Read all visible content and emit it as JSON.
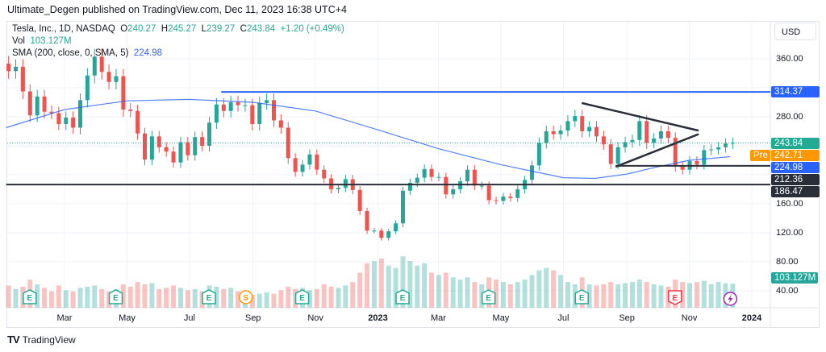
{
  "header": {
    "published": "Ultimate_Degen published on TradingView.com, Dec 11, 2023 16:38 UTC+4"
  },
  "legend": {
    "symbol": "Tesla, Inc., 1D, NASDAQ",
    "o_label": "O",
    "o": "240.27",
    "h_label": "H",
    "h": "245.27",
    "l_label": "L",
    "l": "239.27",
    "c_label": "C",
    "c": "243.84",
    "change": "+1.20 (+0.49%)",
    "vol_label": "Vol",
    "vol": "103.127M",
    "sma_label": "SMA (200, close, 0, SMA, 5)",
    "sma": "224.98"
  },
  "currency": "USD",
  "price_labels": [
    {
      "text": "314.37",
      "color": "#2962ff",
      "value": 314.37
    },
    {
      "text": "243.84",
      "color": "#22ab94",
      "value": 243.84
    },
    {
      "text": "242.71",
      "color": "#ff9800",
      "value": 242.71,
      "tag": "Pre"
    },
    {
      "text": "224.98",
      "color": "#2962ff",
      "value": 224.98
    },
    {
      "text": "212.36",
      "color": "#2a2e39",
      "value": 212.36
    },
    {
      "text": "186.47",
      "color": "#2a2e39",
      "value": 186.47
    }
  ],
  "volume_label": {
    "text": "103.127M",
    "color": "#26a69a"
  },
  "footer": {
    "brand": "TradingView"
  },
  "chart_data": {
    "type": "candlestick",
    "title": "Tesla, Inc., 1D, NASDAQ",
    "ylim": [
      20,
      400
    ],
    "y_ticks": [
      "360.00",
      "280.00",
      "160.00",
      "120.00",
      "80.00",
      "40.00"
    ],
    "y_tick_values": [
      360,
      280,
      160,
      120,
      80,
      40
    ],
    "x_ticks": [
      {
        "label": "Mar",
        "date": "2022-03-01"
      },
      {
        "label": "May",
        "date": "2022-05-01"
      },
      {
        "label": "Jul",
        "date": "2022-07-01"
      },
      {
        "label": "Sep",
        "date": "2022-09-01"
      },
      {
        "label": "Nov",
        "date": "2022-11-01"
      },
      {
        "label": "2023",
        "date": "2023-01-01"
      },
      {
        "label": "Mar",
        "date": "2023-03-01"
      },
      {
        "label": "May",
        "date": "2023-05-01"
      },
      {
        "label": "Jul",
        "date": "2023-07-01"
      },
      {
        "label": "Sep",
        "date": "2023-09-01"
      },
      {
        "label": "Nov",
        "date": "2023-11-01"
      },
      {
        "label": "2024",
        "date": "2024-01-01"
      }
    ],
    "grid": true,
    "colors": {
      "up": "#26a69a",
      "down": "#ef5350",
      "sma": "#2962ff"
    },
    "candles_weekly_close_volumeM": [
      [
        "2022-01-03",
        343,
        95
      ],
      [
        "2022-01-10",
        349,
        80
      ],
      [
        "2022-01-17",
        315,
        90
      ],
      [
        "2022-01-24",
        282,
        120
      ],
      [
        "2022-01-31",
        308,
        100
      ],
      [
        "2022-02-07",
        287,
        85
      ],
      [
        "2022-02-14",
        285,
        70
      ],
      [
        "2022-02-21",
        270,
        95
      ],
      [
        "2022-02-28",
        279,
        75
      ],
      [
        "2022-03-07",
        265,
        70
      ],
      [
        "2022-03-14",
        303,
        85
      ],
      [
        "2022-03-21",
        337,
        90
      ],
      [
        "2022-03-28",
        363,
        95
      ],
      [
        "2022-04-04",
        342,
        80
      ],
      [
        "2022-04-11",
        328,
        70
      ],
      [
        "2022-04-18",
        336,
        80
      ],
      [
        "2022-04-25",
        290,
        100
      ],
      [
        "2022-05-02",
        288,
        90
      ],
      [
        "2022-05-09",
        257,
        110
      ],
      [
        "2022-05-16",
        221,
        100
      ],
      [
        "2022-05-23",
        253,
        105
      ],
      [
        "2022-05-30",
        238,
        80
      ],
      [
        "2022-06-06",
        232,
        85
      ],
      [
        "2022-06-13",
        217,
        95
      ],
      [
        "2022-06-20",
        245,
        85
      ],
      [
        "2022-06-27",
        227,
        75
      ],
      [
        "2022-07-04",
        252,
        80
      ],
      [
        "2022-07-11",
        240,
        70
      ],
      [
        "2022-07-18",
        272,
        95
      ],
      [
        "2022-07-25",
        297,
        90
      ],
      [
        "2022-08-01",
        288,
        80
      ],
      [
        "2022-08-08",
        300,
        85
      ],
      [
        "2022-08-15",
        296,
        70
      ],
      [
        "2022-08-22",
        296,
        60
      ],
      [
        "2022-08-29",
        270,
        55
      ],
      [
        "2022-09-05",
        299,
        60
      ],
      [
        "2022-09-12",
        303,
        65
      ],
      [
        "2022-09-19",
        275,
        60
      ],
      [
        "2022-09-26",
        265,
        75
      ],
      [
        "2022-10-03",
        223,
        90
      ],
      [
        "2022-10-10",
        204,
        80
      ],
      [
        "2022-10-17",
        214,
        85
      ],
      [
        "2022-10-24",
        228,
        75
      ],
      [
        "2022-10-31",
        207,
        80
      ],
      [
        "2022-11-07",
        195,
        100
      ],
      [
        "2022-11-14",
        180,
        90
      ],
      [
        "2022-11-21",
        182,
        85
      ],
      [
        "2022-11-28",
        194,
        95
      ],
      [
        "2022-12-05",
        179,
        110
      ],
      [
        "2022-12-12",
        150,
        150
      ],
      [
        "2022-12-19",
        123,
        190
      ],
      [
        "2022-12-26",
        123,
        200
      ],
      [
        "2023-01-02",
        113,
        210
      ],
      [
        "2023-01-09",
        122,
        180
      ],
      [
        "2023-01-16",
        133,
        170
      ],
      [
        "2023-01-23",
        178,
        220
      ],
      [
        "2023-01-30",
        189,
        200
      ],
      [
        "2023-02-06",
        196,
        180
      ],
      [
        "2023-02-13",
        208,
        190
      ],
      [
        "2023-02-20",
        197,
        150
      ],
      [
        "2023-02-27",
        197,
        140
      ],
      [
        "2023-03-06",
        173,
        150
      ],
      [
        "2023-03-13",
        180,
        130
      ],
      [
        "2023-03-20",
        191,
        120
      ],
      [
        "2023-03-27",
        207,
        130
      ],
      [
        "2023-04-03",
        185,
        110
      ],
      [
        "2023-04-10",
        185,
        100
      ],
      [
        "2023-04-17",
        165,
        130
      ],
      [
        "2023-04-24",
        164,
        120
      ],
      [
        "2023-05-01",
        170,
        110
      ],
      [
        "2023-05-08",
        168,
        100
      ],
      [
        "2023-05-15",
        180,
        110
      ],
      [
        "2023-05-22",
        193,
        120
      ],
      [
        "2023-05-29",
        213,
        140
      ],
      [
        "2023-06-05",
        244,
        160
      ],
      [
        "2023-06-12",
        260,
        170
      ],
      [
        "2023-06-19",
        256,
        160
      ],
      [
        "2023-06-26",
        261,
        140
      ],
      [
        "2023-07-03",
        274,
        110
      ],
      [
        "2023-07-10",
        281,
        100
      ],
      [
        "2023-07-17",
        260,
        130
      ],
      [
        "2023-07-24",
        266,
        100
      ],
      [
        "2023-07-31",
        253,
        95
      ],
      [
        "2023-08-07",
        242,
        100
      ],
      [
        "2023-08-14",
        215,
        110
      ],
      [
        "2023-08-21",
        238,
        100
      ],
      [
        "2023-08-28",
        245,
        105
      ],
      [
        "2023-09-04",
        248,
        110
      ],
      [
        "2023-09-11",
        274,
        120
      ],
      [
        "2023-09-18",
        244,
        110
      ],
      [
        "2023-09-25",
        250,
        100
      ],
      [
        "2023-10-02",
        260,
        95
      ],
      [
        "2023-10-09",
        251,
        90
      ],
      [
        "2023-10-16",
        212,
        120
      ],
      [
        "2023-10-23",
        207,
        110
      ],
      [
        "2023-10-30",
        219,
        105
      ],
      [
        "2023-11-06",
        214,
        110
      ],
      [
        "2023-11-13",
        234,
        115
      ],
      [
        "2023-11-20",
        235,
        100
      ],
      [
        "2023-11-27",
        238,
        110
      ],
      [
        "2023-12-04",
        243,
        105
      ],
      [
        "2023-12-11",
        244,
        103
      ]
    ],
    "sma_200": [
      [
        "2022-01-03",
        265
      ],
      [
        "2022-03-01",
        290
      ],
      [
        "2022-05-01",
        302
      ],
      [
        "2022-07-01",
        304
      ],
      [
        "2022-09-01",
        300
      ],
      [
        "2022-11-01",
        288
      ],
      [
        "2023-01-01",
        262
      ],
      [
        "2023-03-01",
        236
      ],
      [
        "2023-05-01",
        214
      ],
      [
        "2023-07-01",
        196
      ],
      [
        "2023-08-01",
        195
      ],
      [
        "2023-09-01",
        201
      ],
      [
        "2023-10-01",
        211
      ],
      [
        "2023-11-01",
        220
      ],
      [
        "2023-12-11",
        225
      ]
    ],
    "drawings": [
      {
        "kind": "horizontal",
        "price": 314.37,
        "from": "2022-08-01",
        "color": "#2962ff"
      },
      {
        "kind": "horizontal",
        "price": 212.36,
        "from": "2023-08-21",
        "color": "#2a2e39"
      },
      {
        "kind": "horizontal",
        "price": 186.47,
        "from": "2022-01-03",
        "color": "#2a2e39"
      },
      {
        "kind": "trend",
        "from": [
          "2023-07-19",
          299
        ],
        "to": [
          "2023-11-10",
          261
        ],
        "color": "#2a2e39"
      },
      {
        "kind": "trend",
        "from": [
          "2023-08-21",
          211
        ],
        "to": [
          "2023-11-10",
          256
        ],
        "color": "#2a2e39"
      },
      {
        "kind": "dotted",
        "price": 243.84,
        "color": "#22ab94"
      }
    ],
    "events": [
      {
        "type": "earnings",
        "label": "E",
        "date": "2022-01-26",
        "result": "beat"
      },
      {
        "type": "earnings",
        "label": "E",
        "date": "2022-04-20",
        "result": "beat"
      },
      {
        "type": "earnings",
        "label": "E",
        "date": "2022-07-20",
        "result": "beat"
      },
      {
        "type": "split",
        "label": "S",
        "date": "2022-08-25"
      },
      {
        "type": "earnings",
        "label": "E",
        "date": "2022-10-19",
        "result": "beat"
      },
      {
        "type": "earnings",
        "label": "E",
        "date": "2023-01-25",
        "result": "beat"
      },
      {
        "type": "earnings",
        "label": "E",
        "date": "2023-04-19",
        "result": "beat"
      },
      {
        "type": "earnings",
        "label": "E",
        "date": "2023-07-19",
        "result": "beat"
      },
      {
        "type": "earnings",
        "label": "E",
        "date": "2023-10-18",
        "result": "miss"
      },
      {
        "type": "lightning",
        "label": "",
        "date": "2023-12-11"
      }
    ]
  }
}
